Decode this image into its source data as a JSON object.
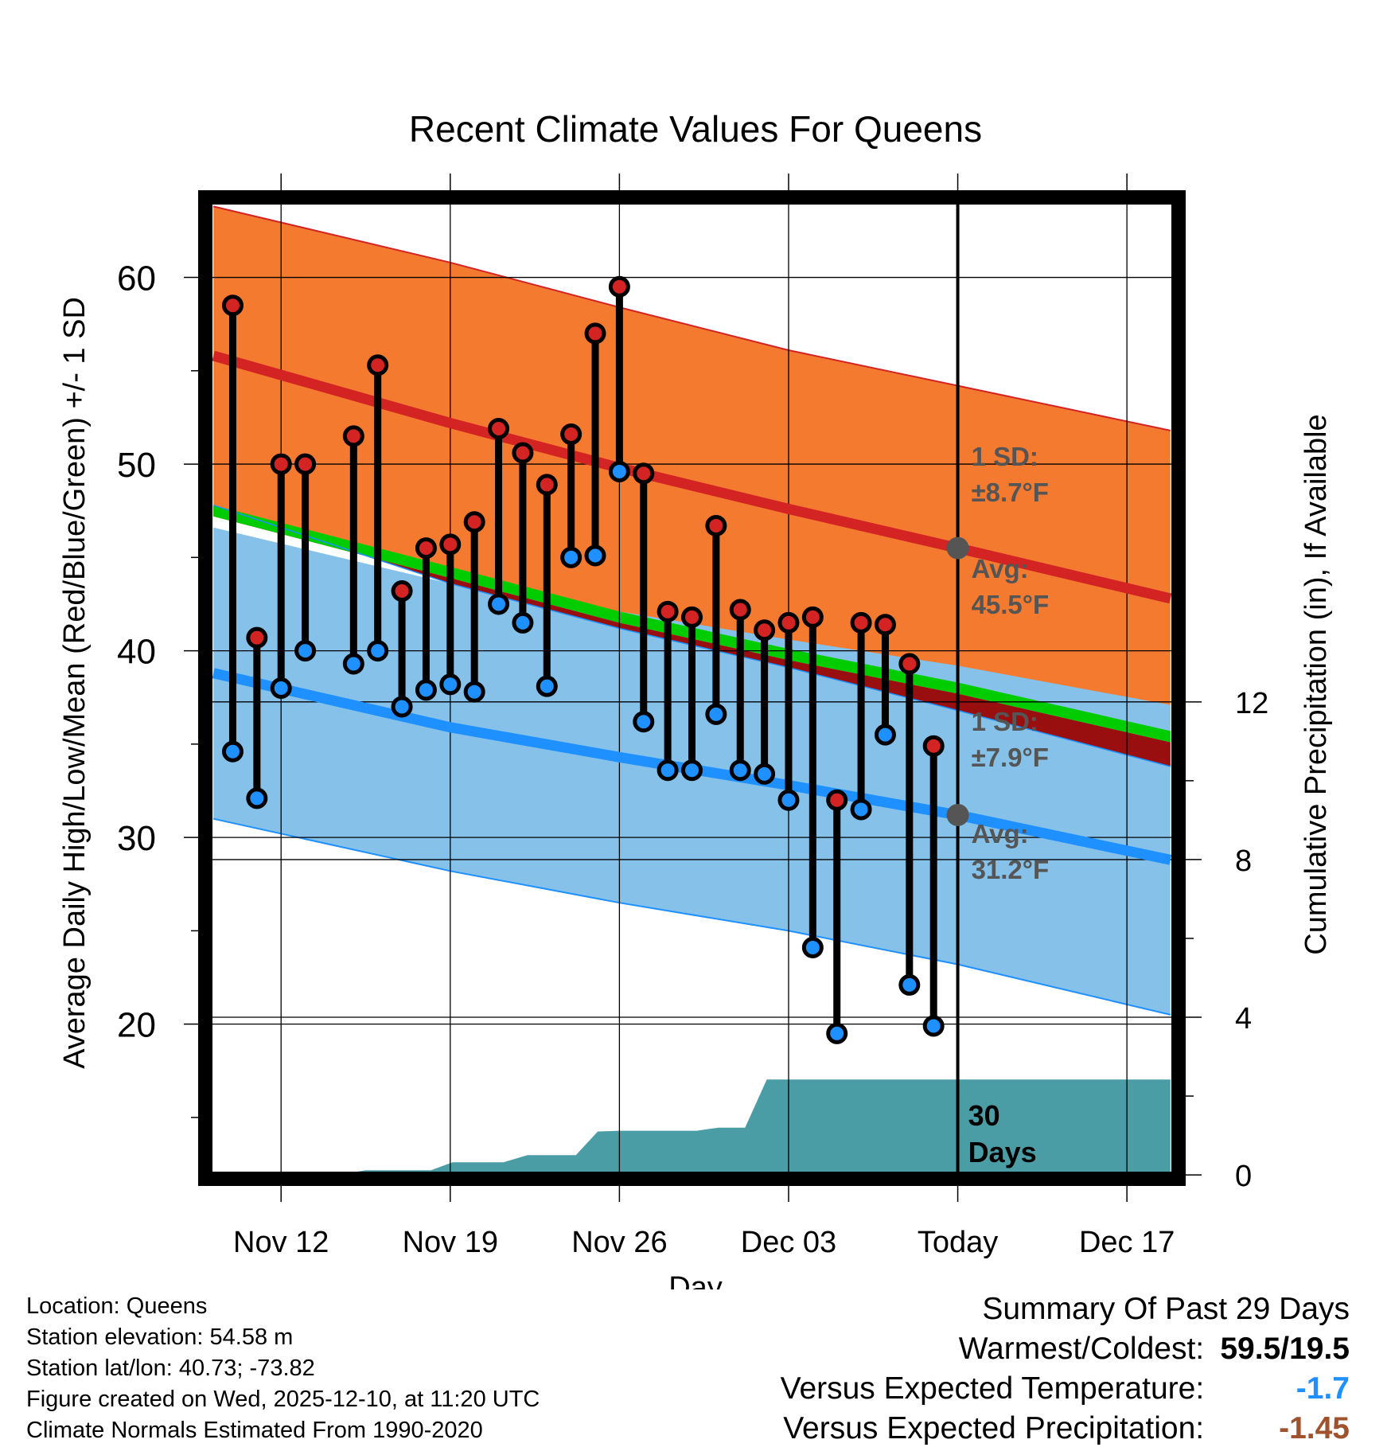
{
  "chart_data": {
    "type": "line",
    "title": "Recent Climate Values For Queens",
    "xlabel": "Day",
    "ylabel": "Average Daily High/Low/Mean (Red/Blue/Green) +/- 1 SD",
    "y2label": "Cumulative Precipitation (in), If Available",
    "xlim": [
      -3.3,
      37.3
    ],
    "ylim": [
      11.5,
      64.5
    ],
    "y2lim": [
      -0.2,
      24.9
    ],
    "x_ticks": [
      {
        "x": 0,
        "label": "Nov 12"
      },
      {
        "x": 7,
        "label": "Nov 19"
      },
      {
        "x": 14,
        "label": "Nov 26"
      },
      {
        "x": 21,
        "label": "Dec 03"
      },
      {
        "x": 28,
        "label": "Today"
      },
      {
        "x": 35,
        "label": "Dec 17"
      }
    ],
    "y_ticks": [
      20,
      30,
      40,
      50,
      60
    ],
    "y2_ticks": [
      0,
      4,
      8,
      12
    ],
    "normals": {
      "x": [
        -2.8,
        7,
        14,
        21,
        28,
        36.8
      ],
      "high_plus_sd": [
        63.8,
        60.8,
        58.4,
        56.1,
        54.2,
        51.8
      ],
      "high_avg": [
        55.8,
        52.2,
        49.8,
        47.6,
        45.5,
        42.8
      ],
      "mean_avg": [
        47.5,
        44.2,
        41.8,
        39.8,
        38.0,
        35.4
      ],
      "low_avg": [
        38.8,
        35.9,
        34.3,
        32.8,
        31.2,
        28.8
      ],
      "low_minus_sd": [
        31.0,
        28.2,
        26.5,
        25.0,
        23.2,
        20.5
      ]
    },
    "observations": [
      {
        "day": -2,
        "high": 58.5,
        "low": 34.6
      },
      {
        "day": -1,
        "high": 40.7,
        "low": 32.1
      },
      {
        "day": 0,
        "high": 50.0,
        "low": 38.0
      },
      {
        "day": 1,
        "high": 50.0,
        "low": 40.0
      },
      {
        "day": 3,
        "high": 51.5,
        "low": 39.3
      },
      {
        "day": 4,
        "high": 55.3,
        "low": 40.0
      },
      {
        "day": 5,
        "high": 43.2,
        "low": 37.0
      },
      {
        "day": 6,
        "high": 45.5,
        "low": 37.9
      },
      {
        "day": 7,
        "high": 45.7,
        "low": 38.2
      },
      {
        "day": 8,
        "high": 46.9,
        "low": 37.8
      },
      {
        "day": 9,
        "high": 51.9,
        "low": 42.5
      },
      {
        "day": 10,
        "high": 50.6,
        "low": 41.5
      },
      {
        "day": 11,
        "high": 48.9,
        "low": 38.1
      },
      {
        "day": 12,
        "high": 51.6,
        "low": 45.0
      },
      {
        "day": 13,
        "high": 57.0,
        "low": 45.1
      },
      {
        "day": 14,
        "high": 59.5,
        "low": 49.6
      },
      {
        "day": 15,
        "high": 49.5,
        "low": 36.2
      },
      {
        "day": 16,
        "high": 42.1,
        "low": 33.6
      },
      {
        "day": 17,
        "high": 41.8,
        "low": 33.6
      },
      {
        "day": 18,
        "high": 46.7,
        "low": 36.6
      },
      {
        "day": 19,
        "high": 42.2,
        "low": 33.6
      },
      {
        "day": 20,
        "high": 41.1,
        "low": 33.4
      },
      {
        "day": 21,
        "high": 41.5,
        "low": 32.0
      },
      {
        "day": 22,
        "high": 41.8,
        "low": 24.1
      },
      {
        "day": 23,
        "high": 32.0,
        "low": 19.5
      },
      {
        "day": 24,
        "high": 41.5,
        "low": 31.5
      },
      {
        "day": 25,
        "high": 41.4,
        "low": 35.5
      },
      {
        "day": 26,
        "high": 39.3,
        "low": 22.1
      },
      {
        "day": 27,
        "high": 34.9,
        "low": 19.9
      }
    ],
    "precip_cumulative": {
      "x": [
        -2.8,
        2.5,
        3.5,
        6.2,
        7.1,
        9.2,
        10.2,
        12.2,
        13.1,
        14.0,
        17.2,
        18.1,
        19.2,
        20.1,
        36.8
      ],
      "y": [
        0.0,
        0.02,
        0.12,
        0.12,
        0.32,
        0.32,
        0.5,
        0.5,
        1.1,
        1.12,
        1.12,
        1.2,
        1.2,
        2.42,
        2.42
      ]
    },
    "annotations": {
      "high_sd": {
        "line1": "1 SD:",
        "line2": "±8.7°F"
      },
      "high_avg": {
        "line1": "Avg:",
        "line2": "45.5°F",
        "value": 45.5
      },
      "low_sd": {
        "line1": "1 SD:",
        "line2": "±7.9°F"
      },
      "low_avg": {
        "line1": "Avg:",
        "line2": "31.2°F",
        "value": 31.2
      },
      "window": {
        "line1": "30",
        "line2": "Days"
      }
    },
    "today_x": 28
  },
  "colors": {
    "high_band": "#f47a30",
    "high_line": "#d32323",
    "low_band": "#85c1e9",
    "low_line": "#1e90ff",
    "mean_band": "#00cc00",
    "below_mean": "#990f0f",
    "precip": "#4a9ca5",
    "high_marker": "#d32323",
    "low_marker": "#1e90ff",
    "annotation": "#555555"
  },
  "footer": {
    "location": "Location: Queens",
    "elevation": "Station elevation: 54.58 m",
    "latlon": "Station lat/lon: 40.73; -73.82",
    "created": "Figure created on Wed, 2025-12-10, at 11:20 UTC",
    "normals": "Climate Normals Estimated From 1990-2020"
  },
  "summary": {
    "title": "Summary Of Past 29 Days",
    "warm_label": "Warmest/Coldest:",
    "warm_value": "59.5/19.5",
    "temp_label": "Versus Expected Temperature:",
    "temp_value": "-1.7",
    "precip_label": "Versus Expected Precipitation:",
    "precip_value": "-1.45"
  }
}
